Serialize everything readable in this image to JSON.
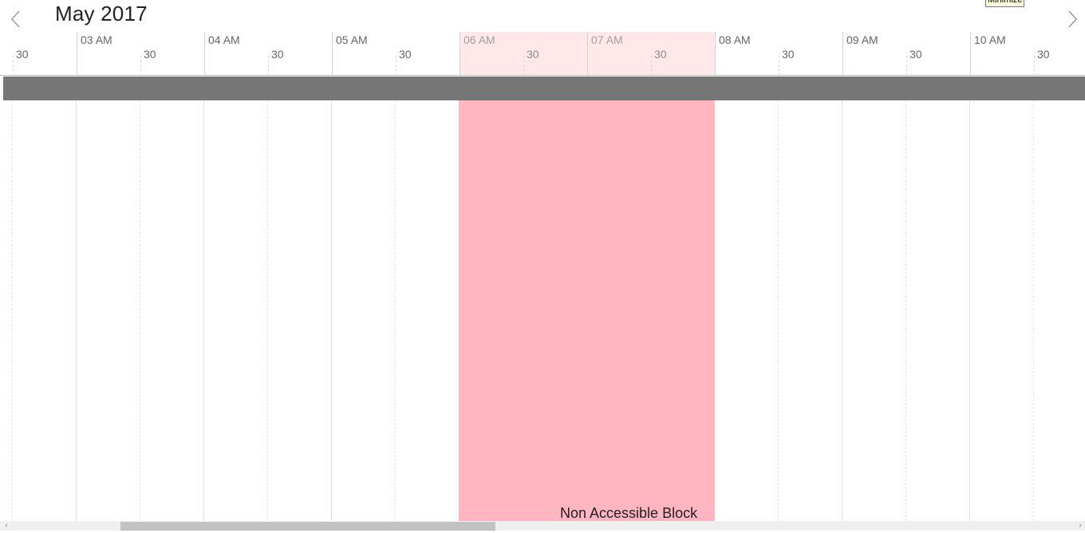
{
  "header": {
    "month_title": "May 2017",
    "tooltip": "Minimize",
    "prev_icon": "chevron-left-icon",
    "next_icon": "chevron-right-icon"
  },
  "timeline": {
    "leading_half_label": "30",
    "hours": [
      {
        "label": "03 AM",
        "half": "30"
      },
      {
        "label": "04 AM",
        "half": "30"
      },
      {
        "label": "05 AM",
        "half": "30"
      },
      {
        "label": "06 AM",
        "half": "30"
      },
      {
        "label": "07 AM",
        "half": "30"
      },
      {
        "label": "08 AM",
        "half": "30"
      },
      {
        "label": "09 AM",
        "half": "30"
      },
      {
        "label": "10 AM",
        "half": "30"
      }
    ]
  },
  "block": {
    "label": "Non Accessible Block",
    "color": "#ffb6c1",
    "header_color": "#ffe4e8"
  },
  "colors": {
    "resource_bar": "#767676",
    "grid_line": "#e0e0e0",
    "scroll_thumb": "#c2c2c2"
  },
  "scrollbar": {
    "left_icon": "arrow-left-icon",
    "right_icon": "arrow-right-icon"
  }
}
